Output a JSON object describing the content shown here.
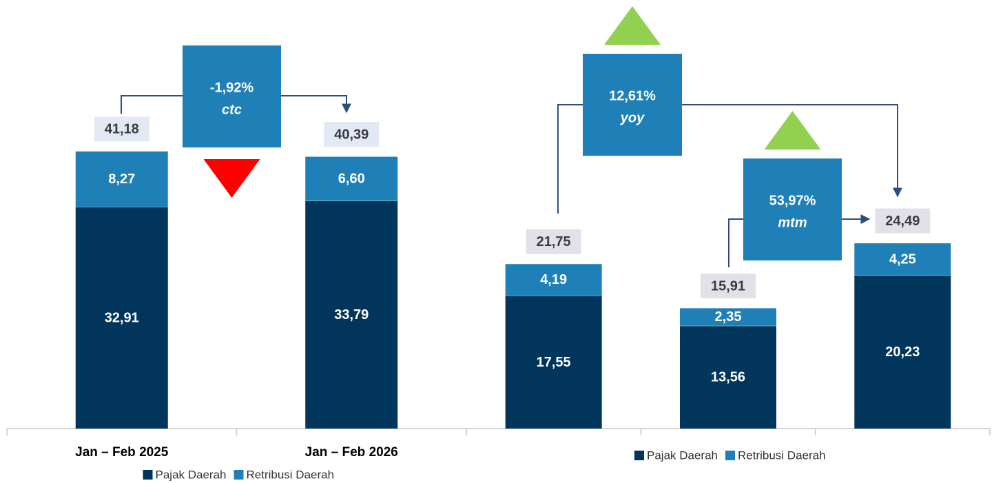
{
  "chart_data": [
    {
      "type": "bar",
      "stacked": true,
      "categories": [
        "Jan – Feb 2025",
        "Jan – Feb 2026"
      ],
      "series": [
        {
          "name": "Pajak Daerah",
          "color": "#02355c",
          "values": [
            32.91,
            33.79
          ],
          "value_labels": [
            "32,91",
            "33,79"
          ]
        },
        {
          "name": "Retribusi Daerah",
          "color": "#1e80b6",
          "values": [
            8.27,
            6.6
          ],
          "value_labels": [
            "8,27",
            "6,60"
          ]
        }
      ],
      "totals": [
        41.18,
        40.39
      ],
      "totals_labels": [
        "41,18",
        "40,39"
      ],
      "changes": [
        {
          "value": -1.92,
          "label": "-1,92%",
          "note": "ctc"
        }
      ],
      "ylim": [
        0,
        45
      ],
      "legend": "bottom"
    },
    {
      "type": "bar",
      "stacked": true,
      "categories": [
        null,
        null,
        null
      ],
      "series": [
        {
          "name": "Pajak Daerah",
          "color": "#02355c",
          "values": [
            17.55,
            13.56,
            20.23
          ],
          "value_labels": [
            "17,55",
            "13,56",
            "20,23"
          ]
        },
        {
          "name": "Retribusi Daerah",
          "color": "#1e80b6",
          "values": [
            4.19,
            2.35,
            4.25
          ],
          "value_labels": [
            "4,19",
            "2,35",
            "4,25"
          ]
        }
      ],
      "totals": [
        21.75,
        15.91,
        24.49
      ],
      "totals_labels": [
        "21,75",
        "15,91",
        "24,49"
      ],
      "changes": [
        {
          "value": 12.61,
          "label": "12,61%",
          "note": "yoy"
        },
        {
          "value": 53.97,
          "label": "53,97%",
          "note": "mtm"
        }
      ],
      "ylim": [
        0,
        40
      ],
      "legend": "bottom"
    }
  ]
}
